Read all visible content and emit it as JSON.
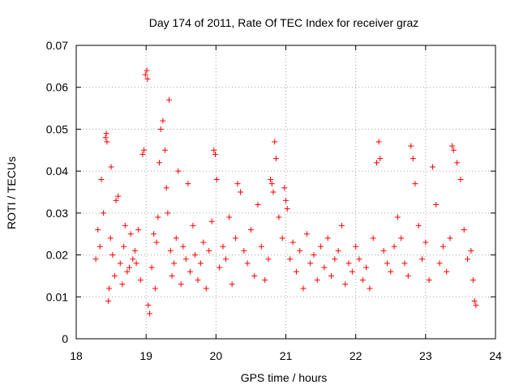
{
  "chart_data": {
    "type": "scatter",
    "title": "Day 174 of 2011, Rate Of TEC Index for receiver graz",
    "xlabel": "GPS time / hours",
    "ylabel": "ROTI / TECUs",
    "xlim": [
      18,
      24
    ],
    "ylim": [
      0,
      0.07
    ],
    "xticks": [
      "18",
      "19",
      "20",
      "21",
      "22",
      "23",
      "24"
    ],
    "yticks": [
      "0",
      "0.01",
      "0.02",
      "0.03",
      "0.04",
      "0.05",
      "0.06",
      "0.07"
    ],
    "grid": true,
    "marker": "+",
    "series_color": "#ff0000",
    "series": [
      {
        "name": "ROTI",
        "x": [
          18.28,
          18.31,
          18.34,
          18.36,
          18.39,
          18.42,
          18.43,
          18.44,
          18.46,
          18.47,
          18.49,
          18.5,
          18.52,
          18.55,
          18.57,
          18.6,
          18.63,
          18.66,
          18.68,
          18.7,
          18.73,
          18.76,
          18.78,
          18.81,
          18.84,
          18.86,
          18.89,
          18.92,
          18.95,
          18.97,
          18.99,
          19.01,
          19.02,
          19.03,
          19.05,
          19.08,
          19.11,
          19.13,
          19.15,
          19.17,
          19.19,
          19.21,
          19.24,
          19.27,
          19.29,
          19.31,
          19.33,
          19.35,
          19.37,
          19.4,
          19.43,
          19.46,
          19.5,
          19.53,
          19.57,
          19.6,
          19.63,
          19.67,
          19.7,
          19.74,
          19.78,
          19.82,
          19.86,
          19.9,
          19.94,
          19.97,
          19.99,
          20.01,
          20.05,
          20.1,
          20.14,
          20.19,
          20.23,
          20.28,
          20.31,
          20.35,
          20.4,
          20.45,
          20.5,
          20.55,
          20.6,
          20.65,
          20.7,
          20.75,
          20.78,
          20.8,
          20.82,
          20.84,
          20.86,
          20.9,
          20.95,
          20.98,
          21.0,
          21.02,
          21.06,
          21.1,
          21.15,
          21.2,
          21.25,
          21.3,
          21.35,
          21.4,
          21.45,
          21.5,
          21.55,
          21.6,
          21.65,
          21.7,
          21.75,
          21.8,
          21.85,
          21.9,
          21.95,
          22.0,
          22.05,
          22.1,
          22.15,
          22.2,
          22.25,
          22.3,
          22.33,
          22.35,
          22.4,
          22.45,
          22.5,
          22.55,
          22.6,
          22.65,
          22.7,
          22.75,
          22.79,
          22.82,
          22.85,
          22.9,
          22.95,
          23.0,
          23.05,
          23.1,
          23.15,
          23.2,
          23.25,
          23.3,
          23.35,
          23.38,
          23.4,
          23.45,
          23.5,
          23.55,
          23.6,
          23.65,
          23.68,
          23.7,
          23.72
        ],
        "y": [
          0.019,
          0.026,
          0.022,
          0.038,
          0.03,
          0.048,
          0.049,
          0.047,
          0.009,
          0.012,
          0.024,
          0.041,
          0.02,
          0.015,
          0.033,
          0.034,
          0.018,
          0.013,
          0.022,
          0.027,
          0.016,
          0.017,
          0.025,
          0.019,
          0.021,
          0.018,
          0.026,
          0.014,
          0.044,
          0.045,
          0.063,
          0.064,
          0.062,
          0.008,
          0.006,
          0.017,
          0.025,
          0.012,
          0.023,
          0.029,
          0.042,
          0.05,
          0.052,
          0.045,
          0.036,
          0.03,
          0.057,
          0.021,
          0.015,
          0.018,
          0.024,
          0.04,
          0.013,
          0.022,
          0.019,
          0.037,
          0.016,
          0.027,
          0.02,
          0.014,
          0.018,
          0.023,
          0.012,
          0.021,
          0.028,
          0.045,
          0.044,
          0.038,
          0.017,
          0.022,
          0.019,
          0.029,
          0.013,
          0.024,
          0.037,
          0.035,
          0.021,
          0.018,
          0.026,
          0.015,
          0.032,
          0.022,
          0.014,
          0.019,
          0.038,
          0.037,
          0.035,
          0.047,
          0.043,
          0.029,
          0.024,
          0.036,
          0.033,
          0.031,
          0.019,
          0.023,
          0.016,
          0.021,
          0.012,
          0.025,
          0.018,
          0.02,
          0.014,
          0.022,
          0.017,
          0.024,
          0.015,
          0.019,
          0.021,
          0.027,
          0.013,
          0.018,
          0.016,
          0.022,
          0.019,
          0.014,
          0.017,
          0.012,
          0.024,
          0.042,
          0.047,
          0.043,
          0.021,
          0.018,
          0.016,
          0.022,
          0.029,
          0.024,
          0.018,
          0.015,
          0.046,
          0.043,
          0.037,
          0.027,
          0.019,
          0.023,
          0.014,
          0.041,
          0.032,
          0.018,
          0.022,
          0.016,
          0.024,
          0.046,
          0.045,
          0.042,
          0.038,
          0.026,
          0.019,
          0.021,
          0.014,
          0.009,
          0.008
        ]
      }
    ]
  }
}
